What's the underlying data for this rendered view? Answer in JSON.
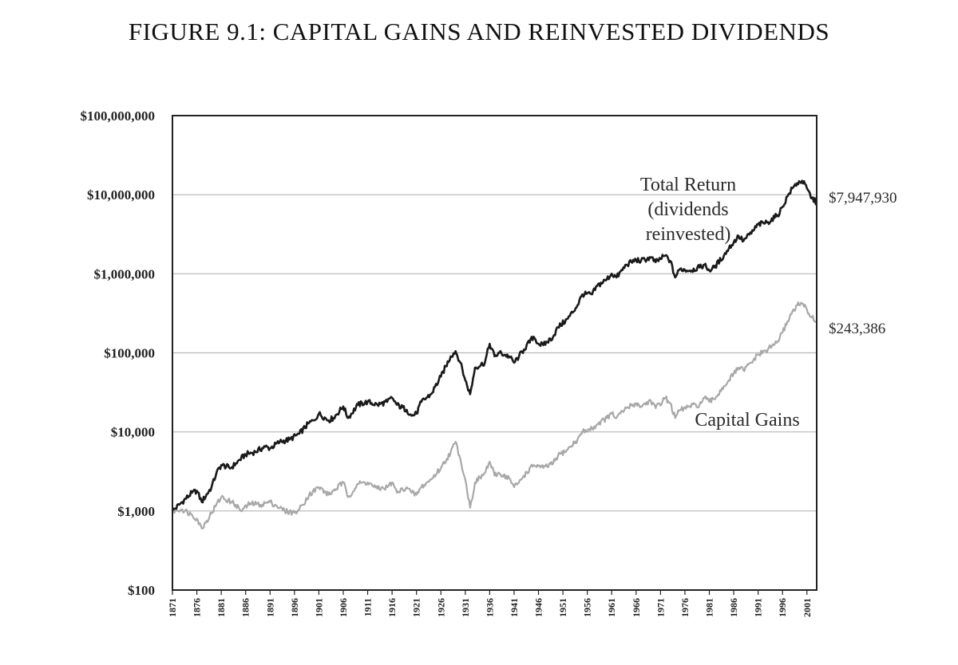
{
  "title": "FIGURE 9.1: CAPITAL GAINS AND REINVESTED DIVIDENDS",
  "chart_data": {
    "type": "line",
    "title": "FIGURE 9.1: CAPITAL GAINS AND REINVESTED DIVIDENDS",
    "yscale": "log",
    "ylim": [
      100,
      100000000
    ],
    "xlim": [
      1871,
      2003
    ],
    "ytick_values": [
      100,
      1000,
      10000,
      100000,
      1000000,
      10000000,
      100000000
    ],
    "ytick_labels": [
      "$100",
      "$1,000",
      "$10,000",
      "$100,000",
      "$1,000,000",
      "$10,000,000",
      "$100,000,000"
    ],
    "xtick_labels": [
      "1871",
      "1876",
      "1881",
      "1886",
      "1891",
      "1896",
      "1901",
      "1906",
      "1911",
      "1916",
      "1921",
      "1926",
      "1931",
      "1936",
      "1941",
      "1946",
      "1951",
      "1956",
      "1961",
      "1966",
      "1971",
      "1976",
      "1981",
      "1986",
      "1991",
      "1996",
      "2001"
    ],
    "grid": "horizontal",
    "series": [
      {
        "name": "Total Return (dividends reinvested)",
        "color": "#1a1a1a",
        "annotation": [
          "Total Return",
          "(dividends",
          "reinvested)"
        ],
        "end_label": "$7,947,930",
        "points": [
          [
            1871,
            1000
          ],
          [
            1873,
            1300
          ],
          [
            1875,
            1700
          ],
          [
            1876,
            1800
          ],
          [
            1877,
            1300
          ],
          [
            1879,
            2000
          ],
          [
            1880,
            3000
          ],
          [
            1881,
            3800
          ],
          [
            1883,
            3500
          ],
          [
            1884,
            4000
          ],
          [
            1886,
            5200
          ],
          [
            1888,
            5600
          ],
          [
            1890,
            6500
          ],
          [
            1891,
            6200
          ],
          [
            1893,
            7500
          ],
          [
            1895,
            8000
          ],
          [
            1897,
            9500
          ],
          [
            1899,
            13000
          ],
          [
            1900,
            14000
          ],
          [
            1901,
            17000
          ],
          [
            1903,
            14000
          ],
          [
            1904,
            15000
          ],
          [
            1906,
            21000
          ],
          [
            1907,
            15000
          ],
          [
            1909,
            22000
          ],
          [
            1911,
            24000
          ],
          [
            1913,
            22000
          ],
          [
            1915,
            24000
          ],
          [
            1916,
            27000
          ],
          [
            1917,
            22000
          ],
          [
            1919,
            19000
          ],
          [
            1920,
            16000
          ],
          [
            1921,
            17000
          ],
          [
            1922,
            24000
          ],
          [
            1924,
            30000
          ],
          [
            1926,
            50000
          ],
          [
            1928,
            90000
          ],
          [
            1929,
            105000
          ],
          [
            1930,
            75000
          ],
          [
            1931,
            45000
          ],
          [
            1932,
            30000
          ],
          [
            1933,
            65000
          ],
          [
            1935,
            75000
          ],
          [
            1936,
            130000
          ],
          [
            1937,
            90000
          ],
          [
            1938,
            100000
          ],
          [
            1940,
            90000
          ],
          [
            1941,
            75000
          ],
          [
            1942,
            90000
          ],
          [
            1943,
            110000
          ],
          [
            1945,
            160000
          ],
          [
            1946,
            130000
          ],
          [
            1947,
            125000
          ],
          [
            1949,
            160000
          ],
          [
            1950,
            210000
          ],
          [
            1952,
            270000
          ],
          [
            1954,
            400000
          ],
          [
            1955,
            550000
          ],
          [
            1957,
            550000
          ],
          [
            1958,
            700000
          ],
          [
            1960,
            850000
          ],
          [
            1961,
            1000000
          ],
          [
            1962,
            900000
          ],
          [
            1964,
            1300000
          ],
          [
            1966,
            1500000
          ],
          [
            1967,
            1450000
          ],
          [
            1969,
            1600000
          ],
          [
            1970,
            1400000
          ],
          [
            1972,
            1700000
          ],
          [
            1973,
            1450000
          ],
          [
            1974,
            900000
          ],
          [
            1975,
            1150000
          ],
          [
            1977,
            1100000
          ],
          [
            1979,
            1200000
          ],
          [
            1980,
            1300000
          ],
          [
            1981,
            1100000
          ],
          [
            1982,
            1200000
          ],
          [
            1984,
            1700000
          ],
          [
            1985,
            2100000
          ],
          [
            1987,
            3000000
          ],
          [
            1988,
            2600000
          ],
          [
            1990,
            3500000
          ],
          [
            1991,
            4200000
          ],
          [
            1993,
            4500000
          ],
          [
            1995,
            5500000
          ],
          [
            1996,
            7000000
          ],
          [
            1997,
            9500000
          ],
          [
            1998,
            12000000
          ],
          [
            1999,
            14000000
          ],
          [
            2000,
            15000000
          ],
          [
            2001,
            12000000
          ],
          [
            2002,
            9000000
          ],
          [
            2003,
            7947930
          ]
        ]
      },
      {
        "name": "Capital Gains",
        "color": "#a8a8a8",
        "annotation": [
          "Capital Gains"
        ],
        "end_label": "$243,386",
        "points": [
          [
            1871,
            1000
          ],
          [
            1873,
            1050
          ],
          [
            1875,
            900
          ],
          [
            1876,
            800
          ],
          [
            1877,
            600
          ],
          [
            1878,
            750
          ],
          [
            1880,
            1200
          ],
          [
            1881,
            1500
          ],
          [
            1883,
            1300
          ],
          [
            1884,
            1200
          ],
          [
            1885,
            1000
          ],
          [
            1887,
            1250
          ],
          [
            1889,
            1200
          ],
          [
            1891,
            1300
          ],
          [
            1892,
            1200
          ],
          [
            1894,
            1000
          ],
          [
            1896,
            950
          ],
          [
            1897,
            1050
          ],
          [
            1899,
            1600
          ],
          [
            1901,
            2000
          ],
          [
            1903,
            1600
          ],
          [
            1904,
            1800
          ],
          [
            1906,
            2300
          ],
          [
            1907,
            1500
          ],
          [
            1909,
            2200
          ],
          [
            1911,
            2300
          ],
          [
            1913,
            1900
          ],
          [
            1915,
            2000
          ],
          [
            1916,
            2300
          ],
          [
            1917,
            1700
          ],
          [
            1919,
            2000
          ],
          [
            1920,
            1700
          ],
          [
            1921,
            1600
          ],
          [
            1922,
            2000
          ],
          [
            1924,
            2500
          ],
          [
            1926,
            3500
          ],
          [
            1928,
            5500
          ],
          [
            1929,
            7500
          ],
          [
            1930,
            4500
          ],
          [
            1931,
            2500
          ],
          [
            1932,
            1100
          ],
          [
            1933,
            2300
          ],
          [
            1935,
            3000
          ],
          [
            1936,
            4200
          ],
          [
            1937,
            2800
          ],
          [
            1938,
            3000
          ],
          [
            1940,
            2600
          ],
          [
            1941,
            2000
          ],
          [
            1942,
            2300
          ],
          [
            1943,
            2800
          ],
          [
            1945,
            3800
          ],
          [
            1946,
            3700
          ],
          [
            1947,
            3500
          ],
          [
            1949,
            4000
          ],
          [
            1950,
            5000
          ],
          [
            1952,
            6000
          ],
          [
            1954,
            8000
          ],
          [
            1955,
            10000
          ],
          [
            1957,
            11000
          ],
          [
            1958,
            12500
          ],
          [
            1960,
            15000
          ],
          [
            1961,
            17000
          ],
          [
            1962,
            15000
          ],
          [
            1964,
            20000
          ],
          [
            1966,
            23000
          ],
          [
            1967,
            21000
          ],
          [
            1969,
            25000
          ],
          [
            1970,
            20000
          ],
          [
            1972,
            27000
          ],
          [
            1973,
            23000
          ],
          [
            1974,
            15000
          ],
          [
            1975,
            19000
          ],
          [
            1977,
            21000
          ],
          [
            1979,
            22000
          ],
          [
            1980,
            27000
          ],
          [
            1981,
            24000
          ],
          [
            1982,
            26000
          ],
          [
            1984,
            38000
          ],
          [
            1985,
            45000
          ],
          [
            1987,
            65000
          ],
          [
            1988,
            60000
          ],
          [
            1990,
            80000
          ],
          [
            1991,
            95000
          ],
          [
            1993,
            110000
          ],
          [
            1995,
            140000
          ],
          [
            1996,
            180000
          ],
          [
            1997,
            250000
          ],
          [
            1998,
            330000
          ],
          [
            1999,
            400000
          ],
          [
            2000,
            420000
          ],
          [
            2001,
            350000
          ],
          [
            2002,
            280000
          ],
          [
            2003,
            243386
          ]
        ]
      }
    ]
  }
}
